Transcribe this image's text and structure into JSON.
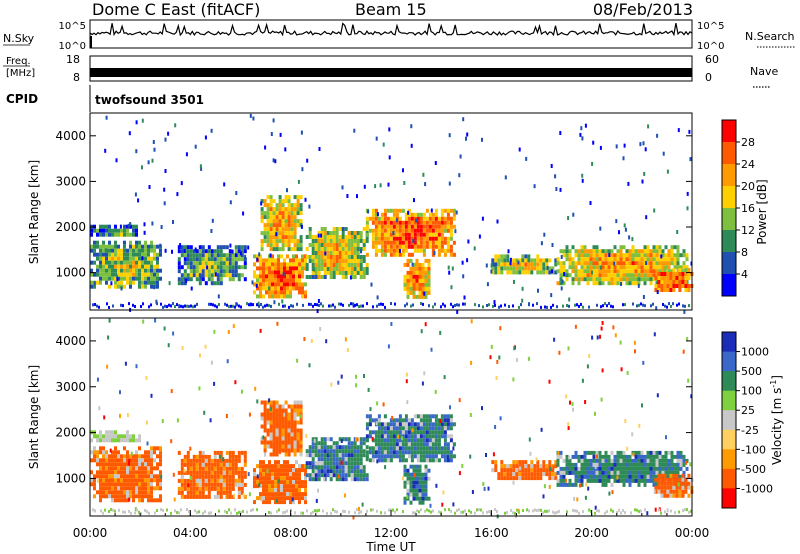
{
  "header": {
    "title": "Dome C East (fitACF)",
    "beam": "Beam 15",
    "date": "08/Feb/2013"
  },
  "top_panels": {
    "nsky_label": "N.Sky",
    "nsky_ticks": [
      "10^5",
      "10^0"
    ],
    "nsearch_label": "N.Search",
    "nsearch_ticks": [
      "10^5",
      "10^0"
    ],
    "freq_label_1": "Freq.",
    "freq_label_2": "[MHz]",
    "freq_ticks": [
      "18",
      "8"
    ],
    "nave_label": "Nave",
    "nave_ticks": [
      "60",
      "0"
    ],
    "cpid_label": "CPID",
    "cpid_value": "twofsound 3501"
  },
  "chart_data": [
    {
      "type": "heatmap",
      "panel": "power",
      "ylabel": "Slant Range [km]",
      "ylim": [
        180,
        4500
      ],
      "yticks": [
        1000,
        2000,
        3000,
        4000
      ],
      "xlim": [
        0,
        24
      ],
      "colorbar": {
        "label": "Power [dB]",
        "ticks": [
          "28",
          "24",
          "20",
          "16",
          "12",
          "8",
          "4"
        ],
        "colors": [
          "#ff0000",
          "#ff5a00",
          "#ff9a00",
          "#ffd000",
          "#7fbf3f",
          "#2e8b57",
          "#1f4fb0",
          "#0000ff"
        ]
      },
      "echo_regions": [
        {
          "t0": 0.0,
          "t1": 2.8,
          "r0": 700,
          "r1": 1700,
          "level": 0.45
        },
        {
          "t0": 0.0,
          "t1": 1.8,
          "r0": 1800,
          "r1": 2050,
          "level": 0.3
        },
        {
          "t0": 3.5,
          "t1": 6.2,
          "r0": 800,
          "r1": 1600,
          "level": 0.35
        },
        {
          "t0": 6.5,
          "t1": 8.6,
          "r0": 500,
          "r1": 1400,
          "level": 0.75
        },
        {
          "t0": 6.8,
          "t1": 8.4,
          "r0": 1500,
          "r1": 2700,
          "level": 0.6
        },
        {
          "t0": 8.6,
          "t1": 11.0,
          "r0": 900,
          "r1": 2000,
          "level": 0.55
        },
        {
          "t0": 11.0,
          "t1": 14.5,
          "r0": 1400,
          "r1": 2400,
          "level": 0.75
        },
        {
          "t0": 12.5,
          "t1": 13.5,
          "r0": 500,
          "r1": 1300,
          "level": 0.7
        },
        {
          "t0": 16.0,
          "t1": 18.6,
          "r0": 1000,
          "r1": 1400,
          "level": 0.5
        },
        {
          "t0": 18.6,
          "t1": 23.8,
          "r0": 800,
          "r1": 1600,
          "level": 0.6
        },
        {
          "t0": 22.5,
          "t1": 24.0,
          "r0": 600,
          "r1": 1100,
          "level": 0.8
        }
      ]
    },
    {
      "type": "heatmap",
      "panel": "velocity",
      "ylabel": "Slant Range [km]",
      "ylim": [
        180,
        4500
      ],
      "yticks": [
        1000,
        2000,
        3000,
        4000
      ],
      "xlim": [
        0,
        24
      ],
      "xlabel": "Time UT",
      "xticks": [
        "00:00",
        "04:00",
        "08:00",
        "12:00",
        "16:00",
        "20:00",
        "00:00"
      ],
      "colorbar": {
        "label_main": "Velocity [m s",
        "label_sup": "-1",
        "label_end": "]",
        "ticks": [
          "1000",
          "500",
          "100",
          "25",
          "-25",
          "-100",
          "-500",
          "-1000"
        ],
        "colors": [
          "#1a2db8",
          "#3a68c8",
          "#2e8b57",
          "#7fd03f",
          "#c8c8c8",
          "#ffd060",
          "#ff9a00",
          "#ff5a00",
          "#ff0000"
        ]
      },
      "echo_regions": [
        {
          "t0": 0.0,
          "t1": 2.8,
          "r0": 500,
          "r1": 1700,
          "vclass": "negative"
        },
        {
          "t0": 0.0,
          "t1": 2.0,
          "r0": 1800,
          "r1": 2050,
          "vclass": "ground"
        },
        {
          "t0": 3.5,
          "t1": 6.2,
          "r0": 600,
          "r1": 1600,
          "vclass": "negative"
        },
        {
          "t0": 6.5,
          "t1": 8.6,
          "r0": 500,
          "r1": 1400,
          "vclass": "negative"
        },
        {
          "t0": 6.8,
          "t1": 8.4,
          "r0": 1500,
          "r1": 2700,
          "vclass": "negative"
        },
        {
          "t0": 8.6,
          "t1": 11.0,
          "r0": 1000,
          "r1": 1900,
          "vclass": "positive"
        },
        {
          "t0": 11.0,
          "t1": 14.5,
          "r0": 1400,
          "r1": 2400,
          "vclass": "positive"
        },
        {
          "t0": 12.5,
          "t1": 13.5,
          "r0": 500,
          "r1": 1300,
          "vclass": "positive"
        },
        {
          "t0": 16.0,
          "t1": 18.6,
          "r0": 1000,
          "r1": 1400,
          "vclass": "negative"
        },
        {
          "t0": 18.6,
          "t1": 23.8,
          "r0": 900,
          "r1": 1600,
          "vclass": "positive"
        },
        {
          "t0": 22.5,
          "t1": 24.0,
          "r0": 600,
          "r1": 1100,
          "vclass": "negative"
        }
      ]
    }
  ]
}
